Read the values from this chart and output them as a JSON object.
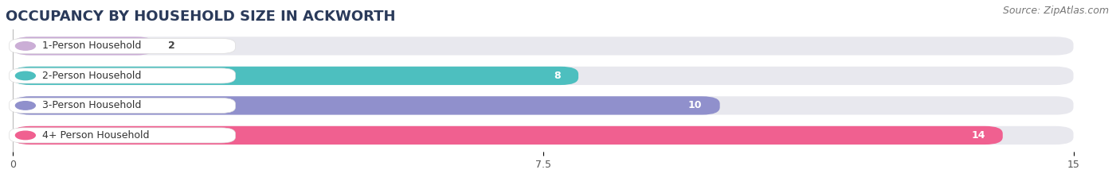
{
  "title": "OCCUPANCY BY HOUSEHOLD SIZE IN ACKWORTH",
  "source": "Source: ZipAtlas.com",
  "categories": [
    "1-Person Household",
    "2-Person Household",
    "3-Person Household",
    "4+ Person Household"
  ],
  "values": [
    2,
    8,
    10,
    14
  ],
  "bar_colors": [
    "#cbaed6",
    "#4dbfbf",
    "#9090cc",
    "#f06090"
  ],
  "bar_bg_color": "#e8e8ee",
  "xlim": [
    0,
    15
  ],
  "xticks": [
    0,
    7.5,
    15
  ],
  "label_colors_inside": [
    "#333333",
    "#333333",
    "#ffffff",
    "#ffffff"
  ],
  "background_color": "#ffffff",
  "title_fontsize": 13,
  "source_fontsize": 9,
  "bar_label_fontsize": 9,
  "tick_fontsize": 9,
  "bar_height": 0.62,
  "bar_gap": 1.0
}
